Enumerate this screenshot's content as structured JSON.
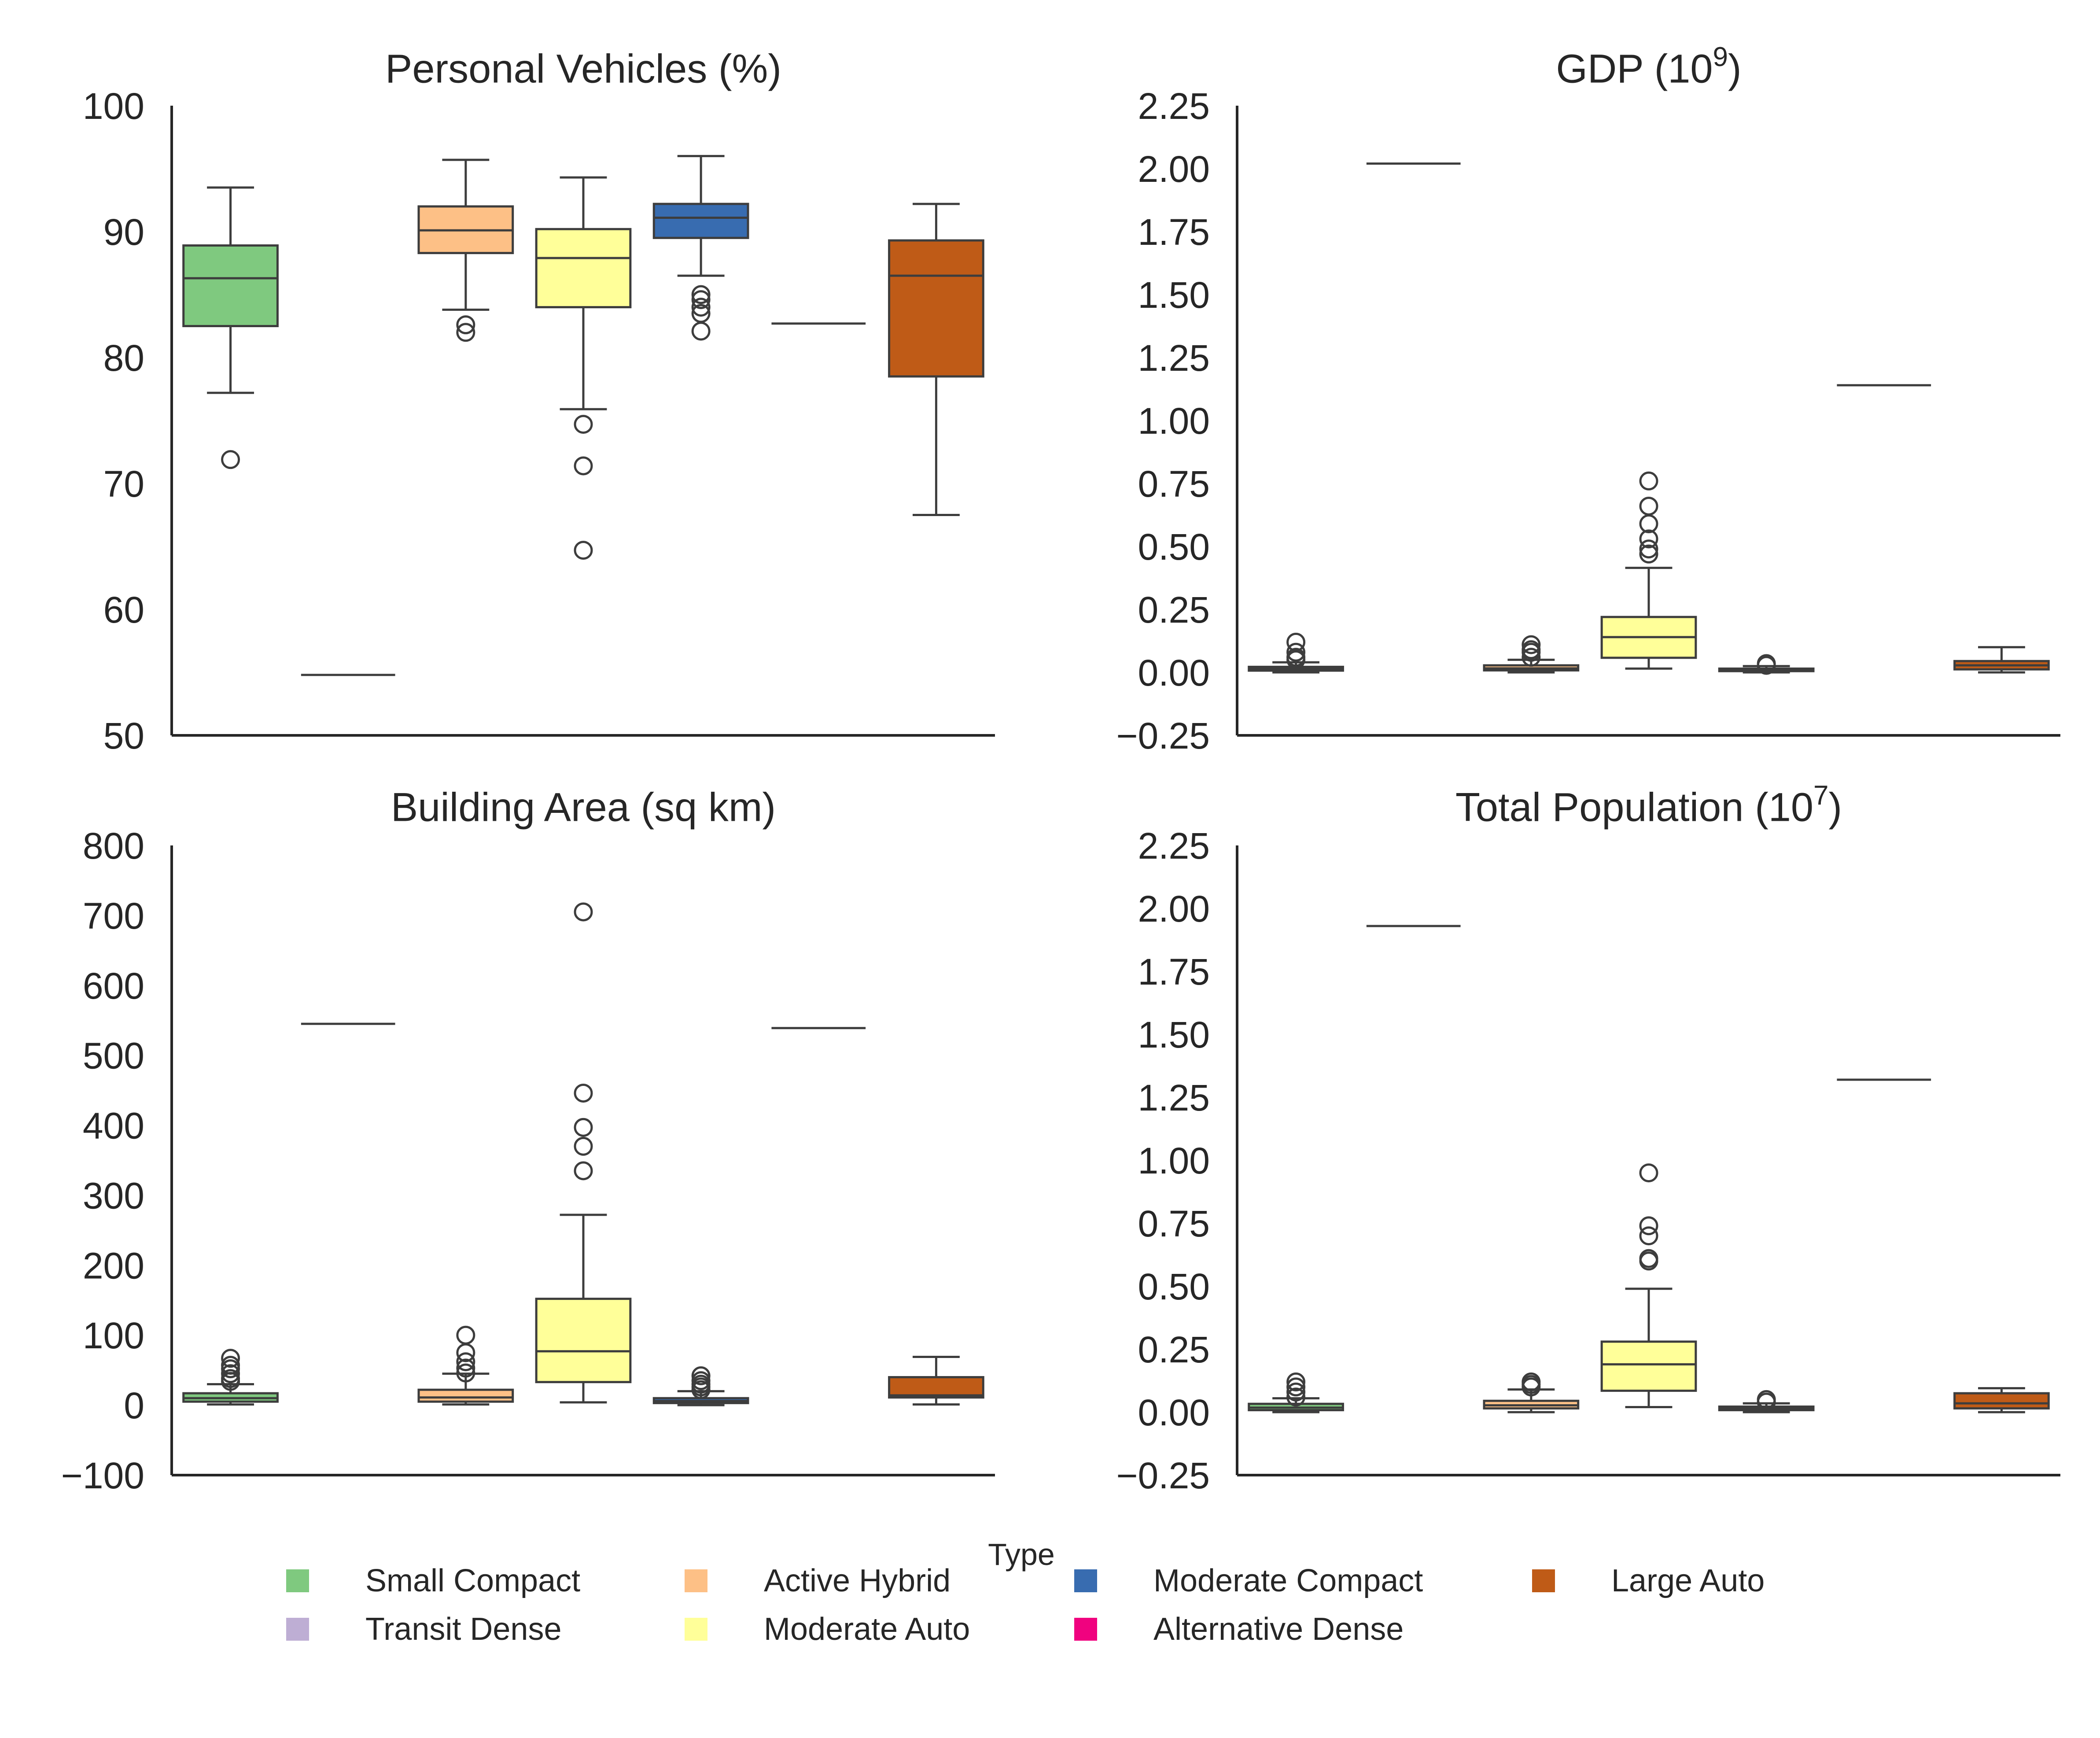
{
  "legend": {
    "title": "Type",
    "items": [
      {
        "label": "Small Compact",
        "color": "#7fc97f"
      },
      {
        "label": "Transit Dense",
        "color": "#beaed4"
      },
      {
        "label": "Active Hybrid",
        "color": "#fdc086"
      },
      {
        "label": "Moderate Auto",
        "color": "#ffff99"
      },
      {
        "label": "Moderate Compact",
        "color": "#386cb0"
      },
      {
        "label": "Alternative Dense",
        "color": "#f0027f"
      },
      {
        "label": "Large Auto",
        "color": "#bf5b17"
      }
    ]
  },
  "chart_data": [
    {
      "type": "box",
      "title": "Personal Vehicles (%)",
      "title_base": "Personal Vehicles (%)",
      "title_sup": "",
      "title_suffix": "",
      "ylim": [
        50,
        100
      ],
      "yticks": [
        50,
        60,
        70,
        80,
        90,
        100
      ],
      "ytick_labels": [
        "50",
        "60",
        "70",
        "80",
        "90",
        "100"
      ],
      "series": [
        {
          "name": "Small Compact",
          "whisker_low": 77.2,
          "q1": 82.5,
          "median": 86.3,
          "q3": 88.9,
          "whisker_high": 93.5,
          "outliers": [
            71.9
          ]
        },
        {
          "name": "Transit Dense",
          "whisker_low": 54.8,
          "q1": 54.8,
          "median": 54.8,
          "q3": 54.8,
          "whisker_high": 54.8,
          "outliers": []
        },
        {
          "name": "Active Hybrid",
          "whisker_low": 83.8,
          "q1": 88.3,
          "median": 90.1,
          "q3": 92.0,
          "whisker_high": 95.7,
          "outliers": [
            82.6,
            82.0
          ]
        },
        {
          "name": "Moderate Auto",
          "whisker_low": 75.9,
          "q1": 84.0,
          "median": 87.9,
          "q3": 90.2,
          "whisker_high": 94.3,
          "outliers": [
            74.7,
            71.4,
            64.7
          ]
        },
        {
          "name": "Moderate Compact",
          "whisker_low": 86.5,
          "q1": 89.5,
          "median": 91.1,
          "q3": 92.2,
          "whisker_high": 96.0,
          "outliers": [
            85.0,
            84.6,
            84.0,
            83.5,
            82.1
          ]
        },
        {
          "name": "Alternative Dense",
          "whisker_low": 82.7,
          "q1": 82.7,
          "median": 82.7,
          "q3": 82.7,
          "whisker_high": 82.7,
          "outliers": []
        },
        {
          "name": "Large Auto",
          "whisker_low": 67.5,
          "q1": 78.5,
          "median": 86.5,
          "q3": 89.3,
          "whisker_high": 92.2,
          "outliers": []
        }
      ]
    },
    {
      "type": "box",
      "title": "GDP (10^9)",
      "title_base": "GDP (10",
      "title_sup": "9",
      "title_suffix": ")",
      "ylim": [
        -0.25,
        2.25
      ],
      "yticks": [
        -0.25,
        0.0,
        0.25,
        0.5,
        0.75,
        1.0,
        1.25,
        1.5,
        1.75,
        2.0,
        2.25
      ],
      "ytick_labels": [
        "−0.25",
        "0.00",
        "0.25",
        "0.50",
        "0.75",
        "1.00",
        "1.25",
        "1.50",
        "1.75",
        "2.00",
        "2.25"
      ],
      "series": [
        {
          "name": "Small Compact",
          "whisker_low": 0.0,
          "q1": 0.007,
          "median": 0.014,
          "q3": 0.022,
          "whisker_high": 0.04,
          "outliers": [
            0.05,
            0.06,
            0.08,
            0.12
          ]
        },
        {
          "name": "Transit Dense",
          "whisker_low": 2.02,
          "q1": 2.02,
          "median": 2.02,
          "q3": 2.02,
          "whisker_high": 2.02,
          "outliers": []
        },
        {
          "name": "Active Hybrid",
          "whisker_low": 0.0,
          "q1": 0.008,
          "median": 0.016,
          "q3": 0.028,
          "whisker_high": 0.05,
          "outliers": [
            0.06,
            0.08,
            0.09,
            0.11
          ]
        },
        {
          "name": "Moderate Auto",
          "whisker_low": 0.015,
          "q1": 0.058,
          "median": 0.14,
          "q3": 0.22,
          "whisker_high": 0.415,
          "outliers": [
            0.47,
            0.49,
            0.53,
            0.59,
            0.66,
            0.76
          ]
        },
        {
          "name": "Moderate Compact",
          "whisker_low": 0.0,
          "q1": 0.005,
          "median": 0.01,
          "q3": 0.015,
          "whisker_high": 0.025,
          "outliers": [
            0.028,
            0.035
          ]
        },
        {
          "name": "Alternative Dense",
          "whisker_low": 1.14,
          "q1": 1.14,
          "median": 1.14,
          "q3": 1.14,
          "whisker_high": 1.14,
          "outliers": []
        },
        {
          "name": "Large Auto",
          "whisker_low": 0.0,
          "q1": 0.012,
          "median": 0.028,
          "q3": 0.045,
          "whisker_high": 0.1,
          "outliers": []
        }
      ]
    },
    {
      "type": "box",
      "title": "Building Area (sq km)",
      "title_base": "Building Area (sq km)",
      "title_sup": "",
      "title_suffix": "",
      "ylim": [
        -100,
        800
      ],
      "yticks": [
        -100,
        0,
        100,
        200,
        300,
        400,
        500,
        600,
        700,
        800
      ],
      "ytick_labels": [
        "−100",
        "0",
        "100",
        "200",
        "300",
        "400",
        "500",
        "600",
        "700",
        "800"
      ],
      "series": [
        {
          "name": "Small Compact",
          "whisker_low": 1,
          "q1": 5,
          "median": 10,
          "q3": 17,
          "whisker_high": 30,
          "outliers": [
            34,
            38,
            45,
            52,
            57,
            67
          ]
        },
        {
          "name": "Transit Dense",
          "whisker_low": 545,
          "q1": 545,
          "median": 545,
          "q3": 545,
          "whisker_high": 545,
          "outliers": []
        },
        {
          "name": "Active Hybrid",
          "whisker_low": 1,
          "q1": 5,
          "median": 11,
          "q3": 22,
          "whisker_high": 45,
          "outliers": [
            46,
            53,
            62,
            75,
            100
          ]
        },
        {
          "name": "Moderate Auto",
          "whisker_low": 4,
          "q1": 33,
          "median": 77,
          "q3": 152,
          "whisker_high": 272,
          "outliers": [
            335,
            370,
            397,
            446,
            705
          ]
        },
        {
          "name": "Moderate Compact",
          "whisker_low": 0,
          "q1": 3,
          "median": 6,
          "q3": 10,
          "whisker_high": 20,
          "outliers": [
            22,
            26,
            30,
            35,
            42
          ]
        },
        {
          "name": "Alternative Dense",
          "whisker_low": 539,
          "q1": 539,
          "median": 539,
          "q3": 539,
          "whisker_high": 539,
          "outliers": []
        },
        {
          "name": "Large Auto",
          "whisker_low": 1,
          "q1": 11,
          "median": 14,
          "q3": 40,
          "whisker_high": 69,
          "outliers": []
        }
      ]
    },
    {
      "type": "box",
      "title": "Total Population (10^7)",
      "title_base": "Total Population (10",
      "title_sup": "7",
      "title_suffix": ")",
      "ylim": [
        -0.25,
        2.25
      ],
      "yticks": [
        -0.25,
        0.0,
        0.25,
        0.5,
        0.75,
        1.0,
        1.25,
        1.5,
        1.75,
        2.0,
        2.25
      ],
      "ytick_labels": [
        "−0.25",
        "0.00",
        "0.25",
        "0.50",
        "0.75",
        "1.00",
        "1.25",
        "1.50",
        "1.75",
        "2.00",
        "2.25"
      ],
      "series": [
        {
          "name": "Small Compact",
          "whisker_low": 0.0,
          "q1": 0.008,
          "median": 0.018,
          "q3": 0.033,
          "whisker_high": 0.055,
          "outliers": [
            0.06,
            0.08,
            0.1,
            0.12
          ]
        },
        {
          "name": "Transit Dense",
          "whisker_low": 1.93,
          "q1": 1.93,
          "median": 1.93,
          "q3": 1.93,
          "whisker_high": 1.93,
          "outliers": []
        },
        {
          "name": "Active Hybrid",
          "whisker_low": 0.0,
          "q1": 0.015,
          "median": 0.027,
          "q3": 0.045,
          "whisker_high": 0.09,
          "outliers": [
            0.1,
            0.11,
            0.12
          ]
        },
        {
          "name": "Moderate Auto",
          "whisker_low": 0.02,
          "q1": 0.085,
          "median": 0.19,
          "q3": 0.28,
          "whisker_high": 0.49,
          "outliers": [
            0.6,
            0.61,
            0.7,
            0.74,
            0.95
          ]
        },
        {
          "name": "Moderate Compact",
          "whisker_low": 0.0,
          "q1": 0.008,
          "median": 0.015,
          "q3": 0.022,
          "whisker_high": 0.035,
          "outliers": [
            0.04,
            0.05
          ]
        },
        {
          "name": "Alternative Dense",
          "whisker_low": 1.32,
          "q1": 1.32,
          "median": 1.32,
          "q3": 1.32,
          "whisker_high": 1.32,
          "outliers": []
        },
        {
          "name": "Large Auto",
          "whisker_low": 0.0,
          "q1": 0.015,
          "median": 0.035,
          "q3": 0.075,
          "whisker_high": 0.095,
          "outliers": []
        }
      ]
    }
  ]
}
